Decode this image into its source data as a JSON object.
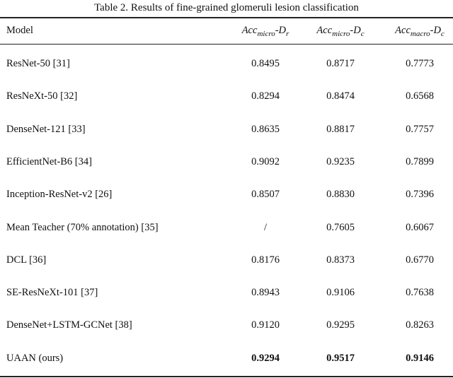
{
  "caption": "Table 2. Results of fine-grained glomeruli lesion classification",
  "headers": {
    "model": "Model",
    "col1": {
      "base": "Acc",
      "sub": "micro",
      "suffix": "-D",
      "suffix_sub": "r"
    },
    "col2": {
      "base": "Acc",
      "sub": "micro",
      "suffix": "-D",
      "suffix_sub": "c"
    },
    "col3": {
      "base": "Acc",
      "sub": "macro",
      "suffix": "-D",
      "suffix_sub": "c"
    }
  },
  "rows": [
    {
      "model": "ResNet-50 [31]",
      "v1": "0.8495",
      "v2": "0.8717",
      "v3": "0.7773"
    },
    {
      "model": "ResNeXt-50 [32]",
      "v1": "0.8294",
      "v2": "0.8474",
      "v3": "0.6568"
    },
    {
      "model": "DenseNet-121 [33]",
      "v1": "0.8635",
      "v2": "0.8817",
      "v3": "0.7757"
    },
    {
      "model": "EfficientNet-B6 [34]",
      "v1": "0.9092",
      "v2": "0.9235",
      "v3": "0.7899"
    },
    {
      "model": "Inception-ResNet-v2 [26]",
      "v1": "0.8507",
      "v2": "0.8830",
      "v3": "0.7396"
    },
    {
      "model": "Mean Teacher (70% annotation) [35]",
      "v1": "/",
      "v2": "0.7605",
      "v3": "0.6067"
    },
    {
      "model": "DCL [36]",
      "v1": "0.8176",
      "v2": "0.8373",
      "v3": "0.6770"
    },
    {
      "model": "SE-ResNeXt-101 [37]",
      "v1": "0.8943",
      "v2": "0.9106",
      "v3": "0.7638"
    },
    {
      "model": "DenseNet+LSTM-GCNet  [38]",
      "v1": "0.9120",
      "v2": "0.9295",
      "v3": "0.8263"
    },
    {
      "model": "UAAN (ours)",
      "v1": "0.9294",
      "v2": "0.9517",
      "v3": "0.9146",
      "bold": true
    }
  ]
}
